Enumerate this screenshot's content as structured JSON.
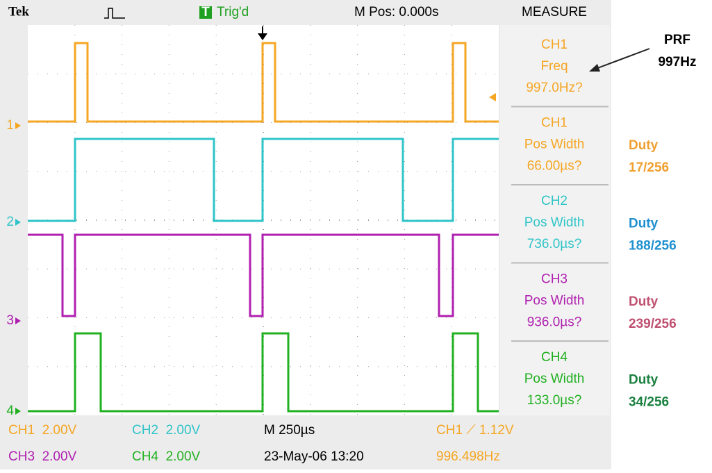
{
  "header": {
    "brand": "Tek",
    "trigger_icon": "T",
    "trigger_status": "Trig'd",
    "position": "M Pos: 0.000s",
    "menu": "MEASURE"
  },
  "measurements": [
    {
      "channel": "CH1",
      "label": "Freq",
      "value": "997.0Hz?"
    },
    {
      "channel": "CH1",
      "label": "Pos Width",
      "value": "66.00µs?"
    },
    {
      "channel": "CH2",
      "label": "Pos Width",
      "value": "736.0µs?"
    },
    {
      "channel": "CH3",
      "label": "Pos Width",
      "value": "936.0µs?"
    },
    {
      "channel": "CH4",
      "label": "Pos Width",
      "value": "133.0µs?"
    }
  ],
  "ground_markers": [
    "1",
    "2",
    "3",
    "4"
  ],
  "footer": {
    "rows": [
      [
        "CH1  2.00V",
        "CH2  2.00V",
        "M 250µs",
        "CH1 ⟋ 1.12V"
      ],
      [
        "CH3  2.00V",
        "CH4  2.00V",
        "23-May-06 13:20",
        "996.498Hz"
      ]
    ]
  },
  "annotations": {
    "prf": {
      "label": "PRF",
      "value": "997Hz"
    },
    "duty": [
      {
        "label": "Duty",
        "value": "17/256"
      },
      {
        "label": "Duty",
        "value": "188/256"
      },
      {
        "label": "Duty",
        "value": "239/256"
      },
      {
        "label": "Duty",
        "value": "34/256"
      }
    ]
  }
}
